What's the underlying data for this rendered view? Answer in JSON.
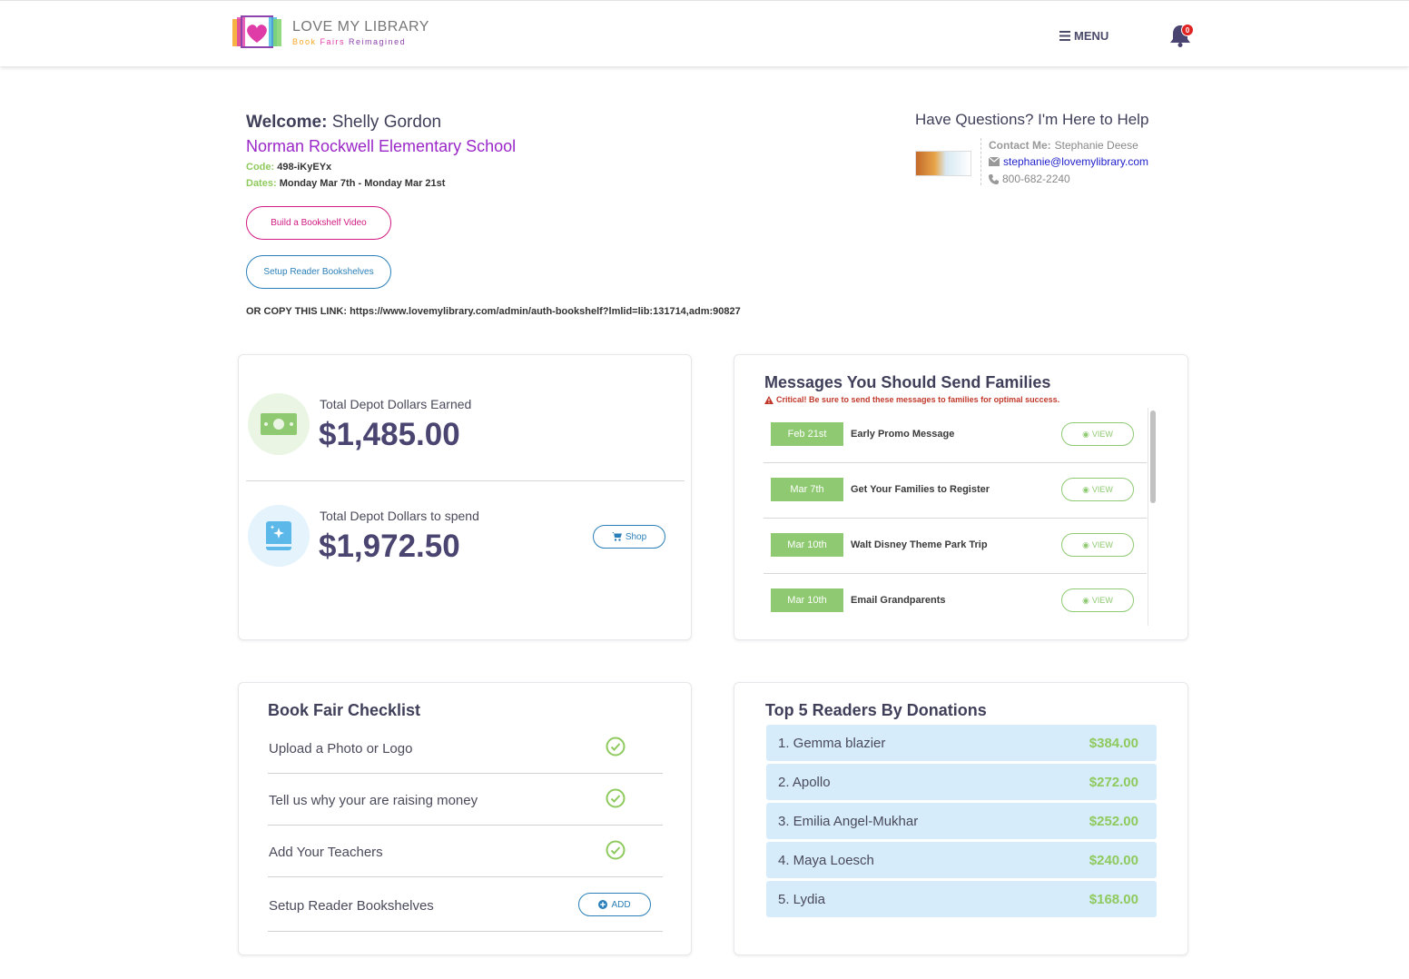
{
  "header": {
    "logo_title": "LOVE MY LIBRARY",
    "logo_sub": [
      "Book",
      "Fairs",
      "Reimagined"
    ],
    "menu_label": "MENU",
    "notification_count": "0"
  },
  "welcome": {
    "label": "Welcome:",
    "name": "Shelly Gordon",
    "school": "Norman Rockwell Elementary School",
    "code_label": "Code:",
    "code_value": "498-iKyEYx",
    "dates_label": "Dates:",
    "dates_value": "Monday Mar 7th - Monday Mar 21st",
    "btn_bookshelf_video": "Build a Bookshelf Video",
    "btn_setup_bookshelves": "Setup Reader Bookshelves",
    "copy_link": "OR COPY THIS LINK: https://www.lovemylibrary.com/admin/auth-bookshelf?lmlid=lib:131714,adm:90827"
  },
  "help": {
    "title": "Have Questions? I'm Here to Help",
    "contact_label": "Contact Me:",
    "contact_name": "Stephanie Deese",
    "email": "stephanie@lovemylibrary.com",
    "phone": "800-682-2240"
  },
  "depot": {
    "earned_label": "Total Depot Dollars Earned",
    "earned_value": "$1,485.00",
    "spend_label": "Total Depot Dollars to spend",
    "spend_value": "$1,972.50",
    "shop_label": "Shop"
  },
  "messages": {
    "title": "Messages You Should Send Families",
    "critical": "Critical! Be sure to send these messages to families for optimal success.",
    "view_label": "VIEW",
    "items": [
      {
        "date": "Feb 21st",
        "name": "Early Promo Message"
      },
      {
        "date": "Mar 7th",
        "name": "Get Your Families to Register"
      },
      {
        "date": "Mar 10th",
        "name": "Walt Disney Theme Park Trip"
      },
      {
        "date": "Mar 10th",
        "name": "Email Grandparents"
      }
    ]
  },
  "checklist": {
    "title": "Book Fair Checklist",
    "add_label": "ADD",
    "items": [
      {
        "label": "Upload a Photo or Logo",
        "done": true
      },
      {
        "label": "Tell us why your are raising money",
        "done": true
      },
      {
        "label": "Add Your Teachers",
        "done": true
      },
      {
        "label": "Setup Reader Bookshelves",
        "done": false
      }
    ]
  },
  "readers": {
    "title": "Top 5 Readers By Donations",
    "items": [
      {
        "name": "1. Gemma blazier",
        "amount": "$384.00"
      },
      {
        "name": "2. Apollo",
        "amount": "$272.00"
      },
      {
        "name": "3. Emilia Angel-Mukhar",
        "amount": "$252.00"
      },
      {
        "name": "4. Maya Loesch",
        "amount": "$240.00"
      },
      {
        "name": "5. Lydia",
        "amount": "$168.00"
      }
    ]
  },
  "colors": {
    "accent_green": "#8fca72",
    "school_purple": "#9b27c9",
    "button_pink": "#d11a82",
    "button_blue": "#2a7fb8"
  }
}
